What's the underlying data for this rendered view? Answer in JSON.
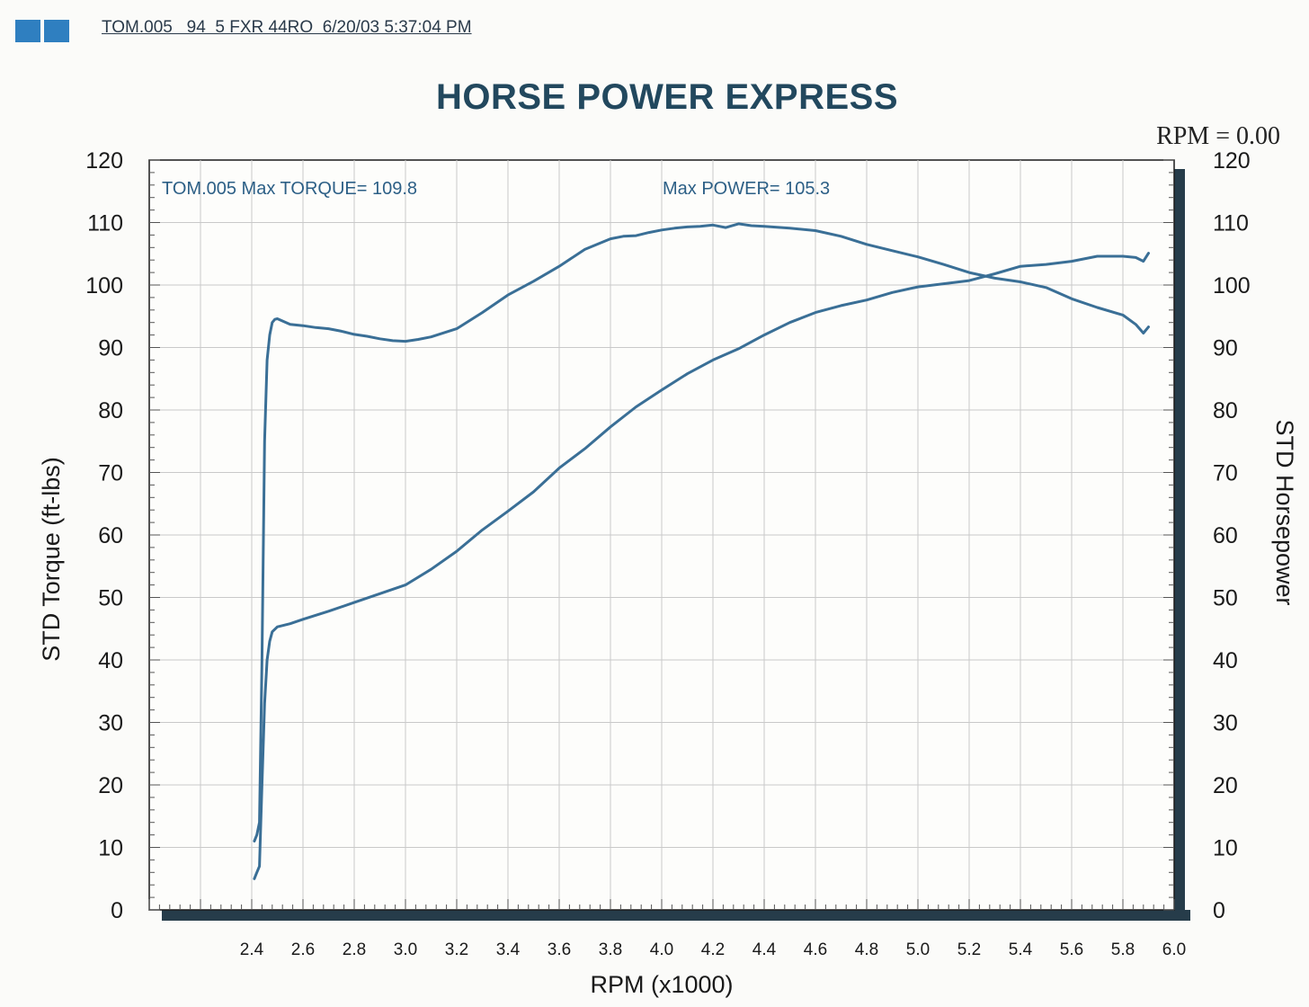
{
  "header": {
    "info_line": "TOM.005   94  5 FXR 44RO  6/20/03 5:37:04 PM"
  },
  "rpm_readout": "RPM = 0.00",
  "colors": {
    "curve": "#3a6f96",
    "grid": "#c9c9c9",
    "frame_shadow": "#263c4a",
    "logo": "#2f7fc0"
  },
  "chart_data": {
    "type": "line",
    "title": "HORSE POWER EXPRESS",
    "xlabel": "RPM (x1000)",
    "ylabel": "STD Torque (ft-lbs)",
    "y2label": "STD Horsepower",
    "xlim": [
      2.0,
      6.0
    ],
    "ylim": [
      0,
      120
    ],
    "y2lim": [
      0,
      120
    ],
    "x_ticks": [
      "2.4",
      "2.6",
      "2.8",
      "3.0",
      "3.2",
      "3.4",
      "3.6",
      "3.8",
      "4.0",
      "4.2",
      "4.4",
      "4.6",
      "4.8",
      "5.0",
      "5.2",
      "5.4",
      "5.6",
      "5.8",
      "6.0"
    ],
    "y_ticks": [
      "0",
      "10",
      "20",
      "30",
      "40",
      "50",
      "60",
      "70",
      "80",
      "90",
      "100",
      "110",
      "120"
    ],
    "grid": true,
    "annotations": {
      "torque": "TOM.005  Max TORQUE= 109.8",
      "power": "Max POWER= 105.3"
    },
    "series": [
      {
        "axis": "left",
        "x": [
          2.41,
          2.42,
          2.43,
          2.44,
          2.45,
          2.46,
          2.47,
          2.48,
          2.49,
          2.5,
          2.55,
          2.6,
          2.65,
          2.7,
          2.75,
          2.8,
          2.85,
          2.9,
          2.95,
          3.0,
          3.05,
          3.1,
          3.2,
          3.3,
          3.4,
          3.5,
          3.6,
          3.7,
          3.8,
          3.85,
          3.9,
          3.95,
          4.0,
          4.05,
          4.1,
          4.15,
          4.2,
          4.25,
          4.3,
          4.35,
          4.4,
          4.5,
          4.6,
          4.7,
          4.8,
          4.9,
          5.0,
          5.1,
          5.2,
          5.3,
          5.4,
          5.5,
          5.6,
          5.7,
          5.8,
          5.85,
          5.88,
          5.9
        ],
        "values": [
          11,
          12,
          14,
          40,
          75,
          88,
          92,
          94,
          94.5,
          94.6,
          93.7,
          93.5,
          93.2,
          93,
          92.6,
          92.1,
          91.8,
          91.4,
          91.1,
          91,
          91.3,
          91.7,
          93,
          95.6,
          98.4,
          100.6,
          103,
          105.7,
          107.4,
          107.8,
          107.9,
          108.4,
          108.8,
          109.1,
          109.3,
          109.4,
          109.6,
          109.2,
          109.8,
          109.5,
          109.4,
          109.1,
          108.7,
          107.8,
          106.5,
          105.5,
          104.5,
          103.3,
          102,
          101.1,
          100.5,
          99.6,
          97.8,
          96.4,
          95.2,
          93.7,
          92.3,
          93.3
        ]
      },
      {
        "axis": "right",
        "x": [
          2.41,
          2.42,
          2.43,
          2.44,
          2.45,
          2.46,
          2.47,
          2.48,
          2.5,
          2.55,
          2.6,
          2.7,
          2.8,
          2.9,
          3.0,
          3.1,
          3.2,
          3.3,
          3.4,
          3.5,
          3.6,
          3.7,
          3.8,
          3.9,
          4.0,
          4.1,
          4.2,
          4.3,
          4.4,
          4.5,
          4.6,
          4.7,
          4.8,
          4.9,
          5.0,
          5.1,
          5.2,
          5.3,
          5.4,
          5.5,
          5.6,
          5.7,
          5.8,
          5.85,
          5.88,
          5.9
        ],
        "values": [
          5,
          6,
          7,
          20,
          33,
          40,
          43,
          44.5,
          45.3,
          45.8,
          46.5,
          47.8,
          49.2,
          50.6,
          52,
          54.5,
          57.4,
          60.8,
          63.8,
          66.9,
          70.7,
          73.8,
          77.3,
          80.5,
          83.2,
          85.8,
          88,
          89.8,
          92,
          94,
          95.6,
          96.7,
          97.6,
          98.8,
          99.7,
          100.2,
          100.7,
          101.8,
          103,
          103.3,
          103.8,
          104.6,
          104.6,
          104.4,
          103.8,
          105.1
        ]
      }
    ]
  }
}
